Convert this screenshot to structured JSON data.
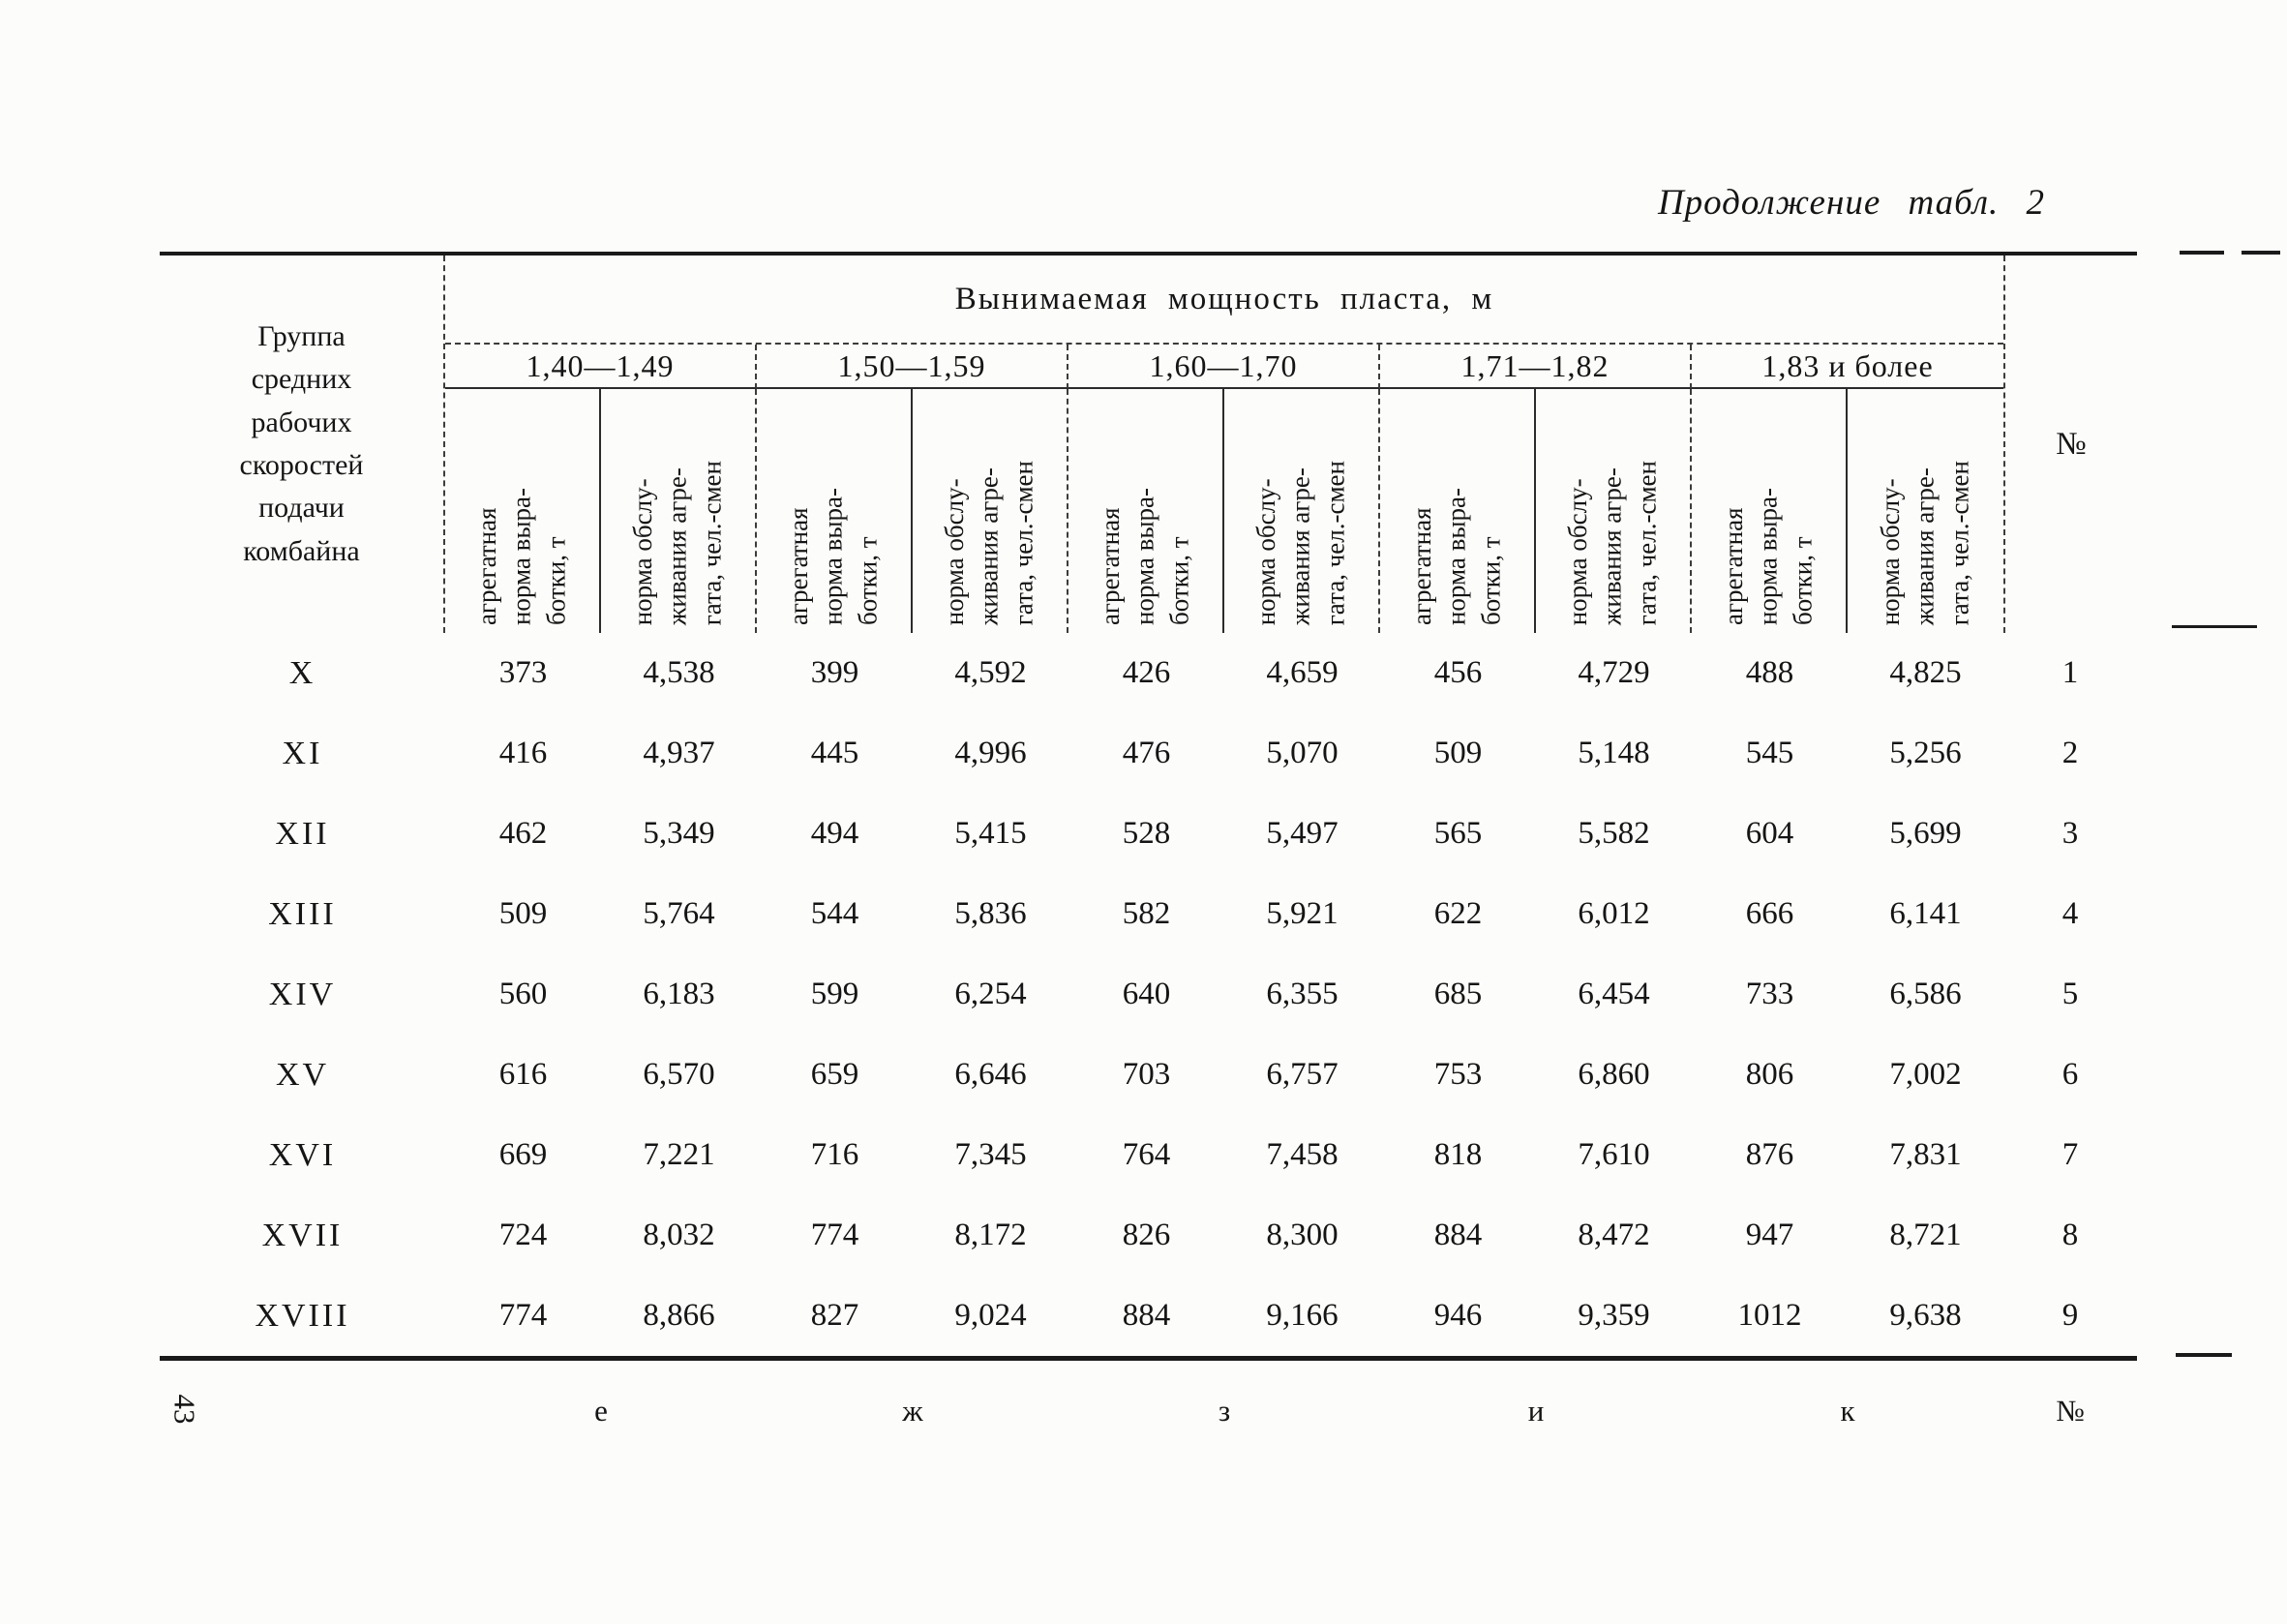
{
  "page": {
    "caption": "Продолжение табл. 2",
    "page_number": "43"
  },
  "table": {
    "corner_header": "Группа\nсредних\nрабочих\nскоростей\nподачи\nкомбайна",
    "span_header": "Вынимаемая мощность пласта, м",
    "num_header": "№",
    "groups": [
      "1,40—1,49",
      "1,50—1,59",
      "1,60—1,70",
      "1,71—1,82",
      "1,83 и более"
    ],
    "subcol_headers": [
      "агрегатная\nнорма выра-\nботки, т",
      "норма обслу-\nживания агре-\nгата, чел.-смен"
    ],
    "rows": [
      {
        "label": "X",
        "values": [
          "373",
          "4,538",
          "399",
          "4,592",
          "426",
          "4,659",
          "456",
          "4,729",
          "488",
          "4,825"
        ],
        "num": "1"
      },
      {
        "label": "XI",
        "values": [
          "416",
          "4,937",
          "445",
          "4,996",
          "476",
          "5,070",
          "509",
          "5,148",
          "545",
          "5,256"
        ],
        "num": "2"
      },
      {
        "label": "XII",
        "values": [
          "462",
          "5,349",
          "494",
          "5,415",
          "528",
          "5,497",
          "565",
          "5,582",
          "604",
          "5,699"
        ],
        "num": "3"
      },
      {
        "label": "XIII",
        "values": [
          "509",
          "5,764",
          "544",
          "5,836",
          "582",
          "5,921",
          "622",
          "6,012",
          "666",
          "6,141"
        ],
        "num": "4"
      },
      {
        "label": "XIV",
        "values": [
          "560",
          "6,183",
          "599",
          "6,254",
          "640",
          "6,355",
          "685",
          "6,454",
          "733",
          "6,586"
        ],
        "num": "5"
      },
      {
        "label": "XV",
        "values": [
          "616",
          "6,570",
          "659",
          "6,646",
          "703",
          "6,757",
          "753",
          "6,860",
          "806",
          "7,002"
        ],
        "num": "6"
      },
      {
        "label": "XVI",
        "values": [
          "669",
          "7,221",
          "716",
          "7,345",
          "764",
          "7,458",
          "818",
          "7,610",
          "876",
          "7,831"
        ],
        "num": "7"
      },
      {
        "label": "XVII",
        "values": [
          "724",
          "8,032",
          "774",
          "8,172",
          "826",
          "8,300",
          "884",
          "8,472",
          "947",
          "8,721"
        ],
        "num": "8"
      },
      {
        "label": "XVIII",
        "values": [
          "774",
          "8,866",
          "827",
          "9,024",
          "884",
          "9,166",
          "946",
          "9,359",
          "1012",
          "9,638"
        ],
        "num": "9"
      }
    ],
    "footer_letters": [
      "е",
      "ж",
      "з",
      "и",
      "к",
      "№"
    ]
  }
}
